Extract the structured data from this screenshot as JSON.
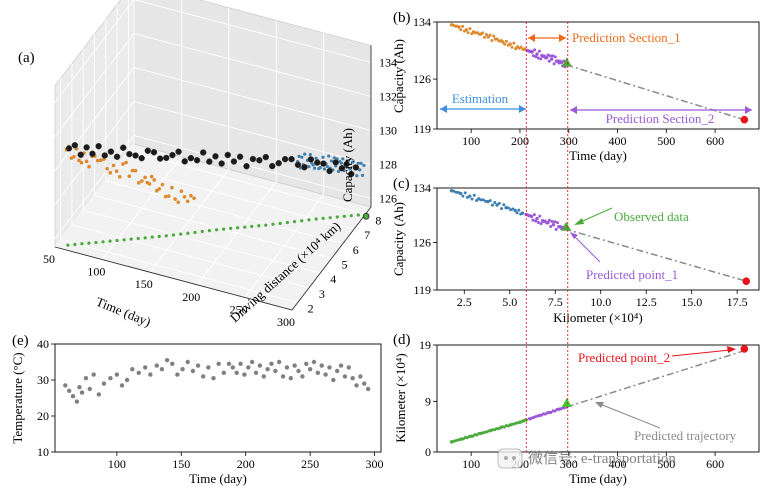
{
  "figure": {
    "panels": {
      "a": "(a)",
      "b": "(b)",
      "c": "(c)",
      "d": "(d)",
      "e": "(e)"
    },
    "watermark": "微信号: e-transportation"
  },
  "colors": {
    "orange": "#dd8a2e",
    "blue": "#3d7fb0",
    "purple": "#9b59d6",
    "green": "#4aaa3c",
    "black": "#1a1a1a",
    "red": "#e8141a",
    "gray": "#808080",
    "dashdot": "#8a8a8a",
    "redline": "#e8141a",
    "arrow_blue": "#3d8fe0",
    "arrow_orange": "#ee6a1a"
  },
  "chart_data": [
    {
      "id": "a",
      "type": "scatter",
      "projection": "3d",
      "xlabel": "Time (day)",
      "ylabel": "Driving distance (×10⁴ km)",
      "zlabel": "Capacity (Ah)",
      "xticks": [
        "50",
        "100",
        "150",
        "200",
        "250",
        "300"
      ],
      "yticks": [
        "2",
        "3",
        "4",
        "5",
        "6",
        "7",
        "8"
      ],
      "zticks": [
        "126",
        "128",
        "130",
        "132",
        "134"
      ],
      "xlim": [
        50,
        300
      ],
      "ylim": [
        1.5,
        8.5
      ],
      "zlim": [
        125.5,
        135
      ],
      "grid": true,
      "series": [
        {
          "color": "orange",
          "plane": "time-capacity",
          "x": [
            62,
            70,
            78,
            86,
            95,
            105,
            115,
            125,
            135,
            145,
            152,
            160,
            170,
            180,
            190,
            200
          ],
          "y": [
            131.4,
            131.3,
            131.2,
            131.1,
            131.5,
            131.0,
            130.8,
            131.3,
            130.9,
            130.7,
            131.0,
            130.6,
            130.5,
            130.4,
            130.6,
            130.3
          ]
        },
        {
          "color": "blue",
          "plane": "distance-capacity",
          "x": [
            2.0,
            2.5,
            3.0,
            3.5,
            4.0,
            4.5,
            5.0,
            5.5,
            6.0,
            6.5,
            7.0,
            7.5,
            8.0
          ],
          "y": [
            133.8,
            133.4,
            133.0,
            132.5,
            132.0,
            131.6,
            131.1,
            130.6,
            130.1,
            129.6,
            129.0,
            128.6,
            128.2
          ]
        },
        {
          "color": "black",
          "plane": "3d",
          "x": [
            60,
            80,
            100,
            120,
            140,
            160,
            180,
            200,
            220,
            240,
            260,
            280,
            295
          ],
          "y": [
            1.9,
            2.3,
            2.8,
            3.3,
            3.8,
            4.3,
            4.8,
            5.3,
            5.9,
            6.5,
            7.1,
            7.6,
            8.0
          ],
          "z": [
            131.1,
            130.9,
            130.7,
            130.5,
            130.3,
            130.0,
            129.8,
            129.5,
            129.2,
            128.9,
            128.6,
            128.3,
            128.0
          ]
        },
        {
          "color": "green",
          "plane": "time-distance",
          "x": [
            60,
            100,
            140,
            180,
            220,
            260,
            300
          ],
          "y": [
            1.8,
            2.8,
            3.8,
            4.9,
            5.9,
            7.0,
            8.0
          ]
        }
      ]
    },
    {
      "id": "b",
      "type": "scatter",
      "xlabel": "Time (day)",
      "ylabel": "Capacity (Ah)",
      "xticks": [
        "100",
        "200",
        "300",
        "400",
        "500",
        "600"
      ],
      "yticks": [
        "119",
        "126",
        "134"
      ],
      "xlim": [
        30,
        690
      ],
      "ylim": [
        119,
        134
      ],
      "annotations": [
        "Estimation",
        "Prediction Section_1",
        "Prediction Section_2"
      ],
      "estimation": {
        "x": [
          60,
          75,
          90,
          105,
          120,
          135,
          150,
          165,
          180,
          195,
          210
        ],
        "y": [
          133.6,
          133.3,
          132.9,
          132.6,
          132.3,
          131.9,
          131.6,
          131.2,
          130.9,
          130.5,
          130.2
        ]
      },
      "prediction_section_1": {
        "x": [
          215,
          225,
          235,
          245,
          255,
          265,
          275,
          285,
          295
        ],
        "y": [
          130.0,
          129.8,
          129.5,
          129.3,
          129.0,
          128.8,
          128.5,
          128.3,
          128.0
        ]
      },
      "predicted_trajectory": {
        "x": [
          295,
          660
        ],
        "y": [
          128.0,
          120.3
        ]
      },
      "observed_point": {
        "x": 296,
        "y": 128.3
      },
      "predicted_point": {
        "x": 660,
        "y": 120.3
      },
      "divider_x": [
        213,
        298
      ]
    },
    {
      "id": "c",
      "type": "scatter",
      "xlabel": "Kilometer (×10⁴)",
      "ylabel": "Capacity (Ah)",
      "xticks": [
        "2.5",
        "5.0",
        "7.5",
        "10.0",
        "12.5",
        "15.0",
        "17.5"
      ],
      "yticks": [
        "119",
        "126",
        "134"
      ],
      "xlim": [
        1.0,
        18.7
      ],
      "ylim": [
        119,
        134
      ],
      "annotations": [
        "Observed data",
        "Predicted point_1"
      ],
      "estimation": {
        "x": [
          1.8,
          2.3,
          2.8,
          3.3,
          3.8,
          4.3,
          4.8,
          5.3,
          5.7
        ],
        "y": [
          133.6,
          133.2,
          132.8,
          132.4,
          132.0,
          131.5,
          131.1,
          130.7,
          130.3
        ]
      },
      "prediction_section_1": {
        "x": [
          5.9,
          6.2,
          6.5,
          6.8,
          7.1,
          7.4,
          7.7,
          8.0
        ],
        "y": [
          130.1,
          129.8,
          129.5,
          129.2,
          128.9,
          128.6,
          128.3,
          128.0
        ]
      },
      "predicted_trajectory": {
        "x": [
          8.0,
          18.0
        ],
        "y": [
          128.0,
          120.3
        ]
      },
      "observed_point": {
        "x": 8.1,
        "y": 128.3
      },
      "predicted_point": {
        "x": 18.0,
        "y": 120.3
      }
    },
    {
      "id": "d",
      "type": "scatter",
      "xlabel": "Time (day)",
      "ylabel": "Kilometer (×10⁴)",
      "xticks": [
        "100",
        "200",
        "300",
        "400",
        "500",
        "600"
      ],
      "yticks": [
        "0",
        "9",
        "19"
      ],
      "xlim": [
        30,
        690
      ],
      "ylim": [
        0,
        19
      ],
      "annotations": [
        "Predicted point_2",
        "Predicted trajectory"
      ],
      "estimation": {
        "x": [
          60,
          80,
          100,
          120,
          140,
          160,
          180,
          200,
          213
        ],
        "y": [
          1.8,
          2.3,
          2.8,
          3.3,
          3.8,
          4.3,
          4.8,
          5.3,
          5.7
        ]
      },
      "prediction_section_1": {
        "x": [
          220,
          240,
          260,
          280,
          296
        ],
        "y": [
          5.9,
          6.5,
          7.0,
          7.6,
          8.0
        ]
      },
      "predicted_trajectory": {
        "x": [
          296,
          660
        ],
        "y": [
          8.0,
          18.0
        ]
      },
      "observed_point": {
        "x": 296,
        "y": 8.7
      },
      "predicted_point": {
        "x": 660,
        "y": 18.3
      }
    },
    {
      "id": "e",
      "type": "scatter",
      "xlabel": "Time (day)",
      "ylabel": "Temperature (°C)",
      "xticks": [
        "100",
        "150",
        "200",
        "250",
        "300"
      ],
      "yticks": [
        "10",
        "20",
        "30",
        "40"
      ],
      "xlim": [
        52,
        305
      ],
      "ylim": [
        10,
        40
      ],
      "x": [
        60,
        63,
        66,
        69,
        71,
        73,
        76,
        79,
        82,
        86,
        90,
        95,
        100,
        104,
        108,
        112,
        117,
        122,
        126,
        131,
        135,
        139,
        143,
        147,
        151,
        155,
        159,
        163,
        167,
        171,
        175,
        179,
        183,
        187,
        190,
        193,
        196,
        199,
        202,
        205,
        208,
        211,
        214,
        217,
        220,
        223,
        226,
        229,
        232,
        235,
        238,
        241,
        244,
        247,
        250,
        253,
        256,
        259,
        262,
        265,
        268,
        271,
        274,
        277,
        280,
        283,
        286,
        289,
        292,
        295
      ],
      "y": [
        28.5,
        27.0,
        25.5,
        24.0,
        28.0,
        26.5,
        30.5,
        27.5,
        31.5,
        26.0,
        29.0,
        30.5,
        31.5,
        28.5,
        30.0,
        33.0,
        32.0,
        33.5,
        31.5,
        34.0,
        33.0,
        35.5,
        34.5,
        31.5,
        33.0,
        35.0,
        32.5,
        34.0,
        31.0,
        33.5,
        30.5,
        34.5,
        32.0,
        34.5,
        33.5,
        32.0,
        34.5,
        31.5,
        33.5,
        35.0,
        32.0,
        34.0,
        31.0,
        33.0,
        34.5,
        32.5,
        35.0,
        31.0,
        33.5,
        30.5,
        34.0,
        32.5,
        31.0,
        34.5,
        33.0,
        35.0,
        32.0,
        34.0,
        31.5,
        33.5,
        30.0,
        32.5,
        34.0,
        31.0,
        33.5,
        30.5,
        28.5,
        31.0,
        29.0,
        27.5
      ]
    }
  ]
}
